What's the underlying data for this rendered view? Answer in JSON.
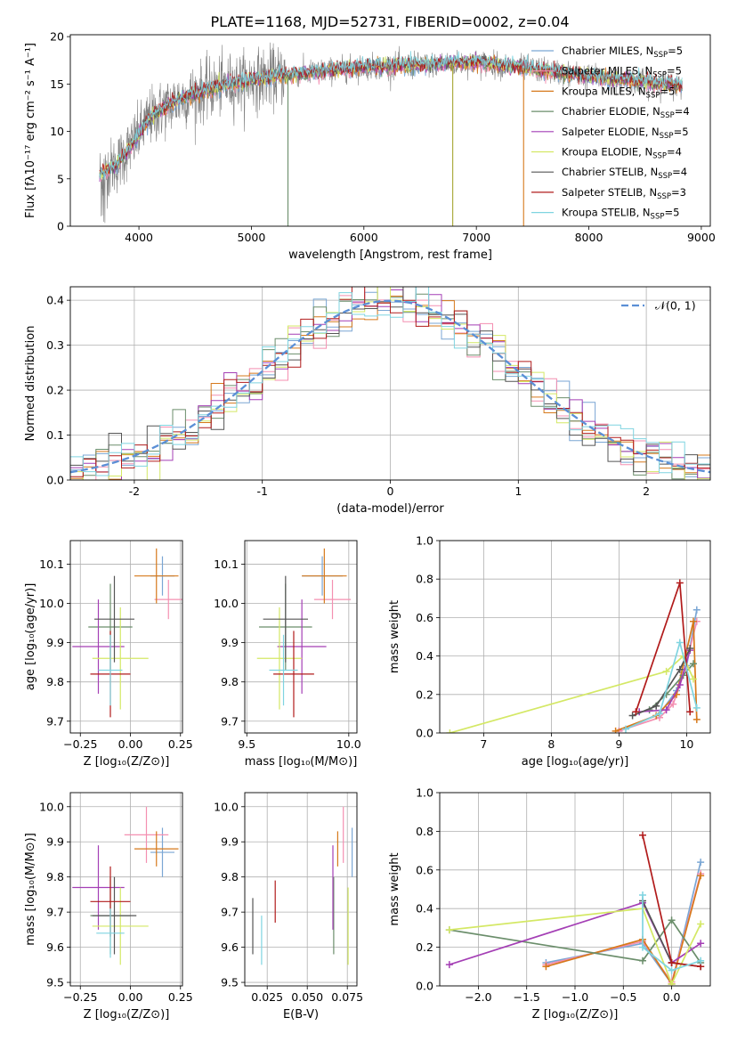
{
  "chart_data": [
    {
      "type": "line",
      "panel": "spectrum",
      "title": "PLATE=1168, MJD=52731, FIBERID=0002, z=0.04",
      "xlabel": "wavelength [Angstrom, rest frame]",
      "ylabel": "Flux [fλ10⁻¹⁷ erg cm⁻² s⁻¹ A⁻¹]",
      "xlim": [
        3390,
        9080
      ],
      "ylim": [
        0,
        20.2
      ],
      "xticks": [
        4000,
        5000,
        6000,
        7000,
        8000,
        9000
      ],
      "yticks": [
        0,
        5,
        10,
        15,
        20
      ],
      "grid": false,
      "legend_position": "upper-right",
      "data_range_x": [
        3650,
        8830
      ],
      "continuum": {
        "x": [
          3650,
          3800,
          3950,
          4100,
          4300,
          4500,
          4800,
          5200,
          5600,
          6000,
          6500,
          7000,
          7500,
          8000,
          8500,
          8830
        ],
        "y": [
          5.5,
          6.5,
          8.8,
          11.5,
          13.0,
          14.0,
          15.0,
          15.8,
          16.3,
          16.8,
          17.0,
          17.3,
          16.6,
          15.8,
          15.2,
          14.8
        ]
      },
      "data_series": {
        "name": "SDSS spectrum",
        "color": "#808080"
      },
      "series": [
        {
          "name": "Chabrier MILES, N",
          "sub": "SSP",
          "suffix": "=5",
          "color": "#7aa6d4"
        },
        {
          "name": "Salpeter MILES, N",
          "sub": "SSP",
          "suffix": "=5",
          "color": "#f48fb1"
        },
        {
          "name": "Kroupa MILES, N",
          "sub": "SSP",
          "suffix": "=5",
          "color": "#d6791b"
        },
        {
          "name": "Chabrier ELODIE, N",
          "sub": "SSP",
          "suffix": "=4",
          "color": "#6b8e6b"
        },
        {
          "name": "Salpeter ELODIE, N",
          "sub": "SSP",
          "suffix": "=5",
          "color": "#a43fb5"
        },
        {
          "name": "Kroupa ELODIE, N",
          "sub": "SSP",
          "suffix": "=4",
          "color": "#d4e865"
        },
        {
          "name": "Chabrier STELIB, N",
          "sub": "SSP",
          "suffix": "=4",
          "color": "#555555"
        },
        {
          "name": "Salpeter STELIB, N",
          "sub": "SSP",
          "suffix": "=3",
          "color": "#b11b1b"
        },
        {
          "name": "Kroupa STELIB, N",
          "sub": "SSP",
          "suffix": "=5",
          "color": "#7fd4e0"
        }
      ],
      "dips": [
        {
          "x": 5325,
          "color": "#6b8e6b"
        },
        {
          "x": 6790,
          "color": "#a6a633"
        },
        {
          "x": 7420,
          "color": "#d6791b"
        }
      ]
    },
    {
      "type": "histogram",
      "panel": "residuals",
      "xlabel": "(data-model)/error",
      "ylabel": "Normed distribution",
      "xlim": [
        -2.5,
        2.5
      ],
      "ylim": [
        0,
        0.43
      ],
      "xticks": [
        -2,
        -1,
        0,
        1,
        2
      ],
      "yticks": [
        0.0,
        0.1,
        0.2,
        0.3,
        0.4
      ],
      "grid": true,
      "legend_position": "upper-right",
      "legend": "𝒩(0, 1)",
      "normal_curve": {
        "mu": 0,
        "sigma": 1,
        "color": "#5b8fd6"
      },
      "bin_width": 0.1,
      "series_colors": [
        "#7aa6d4",
        "#f48fb1",
        "#d6791b",
        "#6b8e6b",
        "#a43fb5",
        "#d4e865",
        "#555555",
        "#b11b1b",
        "#7fd4e0"
      ]
    },
    {
      "type": "errorbar",
      "panel": "Z-age",
      "xlabel": "Z [log₁₀(Z/Z⊙)]",
      "ylabel": "age  [log₁₀(age/yr)]",
      "xlim": [
        -0.3,
        0.26
      ],
      "ylim": [
        9.67,
        10.16
      ],
      "xticks": [
        -0.25,
        0.0,
        0.25
      ],
      "yticks": [
        9.7,
        9.8,
        9.9,
        10.0,
        10.1
      ],
      "tick_labels_x": [
        "−0.25",
        "0.00",
        "0.25"
      ],
      "tick_labels_y": [
        "9.7",
        "9.8",
        "9.9",
        "10.0",
        "10.1"
      ],
      "grid": true,
      "points": [
        {
          "x": 0.16,
          "xerr": 0.06,
          "y": 10.07,
          "yerr": 0.05,
          "color": "#7aa6d4"
        },
        {
          "x": 0.19,
          "xerr": 0.07,
          "y": 10.01,
          "yerr": 0.05,
          "color": "#f48fb1"
        },
        {
          "x": 0.13,
          "xerr": 0.11,
          "y": 10.07,
          "yerr": 0.07,
          "color": "#d6791b"
        },
        {
          "x": -0.1,
          "xerr": 0.11,
          "y": 9.94,
          "yerr": 0.11,
          "color": "#6b8e6b"
        },
        {
          "x": -0.16,
          "xerr": 0.13,
          "y": 9.89,
          "yerr": 0.12,
          "color": "#a43fb5"
        },
        {
          "x": -0.05,
          "xerr": 0.14,
          "y": 9.86,
          "yerr": 0.13,
          "color": "#d4e865"
        },
        {
          "x": -0.08,
          "xerr": 0.1,
          "y": 9.96,
          "yerr": 0.11,
          "color": "#555555"
        },
        {
          "x": -0.1,
          "xerr": 0.1,
          "y": 9.82,
          "yerr": 0.11,
          "color": "#b11b1b"
        },
        {
          "x": -0.1,
          "xerr": 0.06,
          "y": 9.83,
          "yerr": 0.09,
          "color": "#7fd4e0"
        }
      ]
    },
    {
      "type": "errorbar",
      "panel": "mass-age",
      "xlabel": "mass [log₁₀(M/M⊙)]",
      "ylabel": "",
      "xlim": [
        9.49,
        10.04
      ],
      "ylim": [
        9.67,
        10.16
      ],
      "xticks": [
        9.5,
        10.0
      ],
      "yticks": [
        9.7,
        9.8,
        9.9,
        10.0,
        10.1
      ],
      "tick_labels_x": [
        "9.5",
        "10.0"
      ],
      "tick_labels_y": [
        "9.7",
        "9.8",
        "9.9",
        "10.0",
        "10.1"
      ],
      "grid": true,
      "points": [
        {
          "x": 9.87,
          "xerr": 0.1,
          "y": 10.07,
          "yerr": 0.05,
          "color": "#7aa6d4"
        },
        {
          "x": 9.92,
          "xerr": 0.09,
          "y": 10.01,
          "yerr": 0.05,
          "color": "#f48fb1"
        },
        {
          "x": 9.88,
          "xerr": 0.11,
          "y": 10.07,
          "yerr": 0.07,
          "color": "#d6791b"
        },
        {
          "x": 9.69,
          "xerr": 0.13,
          "y": 9.94,
          "yerr": 0.11,
          "color": "#6b8e6b"
        },
        {
          "x": 9.77,
          "xerr": 0.12,
          "y": 9.89,
          "yerr": 0.12,
          "color": "#a43fb5"
        },
        {
          "x": 9.66,
          "xerr": 0.11,
          "y": 9.86,
          "yerr": 0.13,
          "color": "#d4e865"
        },
        {
          "x": 9.69,
          "xerr": 0.11,
          "y": 9.96,
          "yerr": 0.11,
          "color": "#555555"
        },
        {
          "x": 9.73,
          "xerr": 0.1,
          "y": 9.82,
          "yerr": 0.11,
          "color": "#b11b1b"
        },
        {
          "x": 9.68,
          "xerr": 0.07,
          "y": 9.83,
          "yerr": 0.09,
          "color": "#7fd4e0"
        }
      ]
    },
    {
      "type": "line",
      "panel": "age-weight",
      "xlabel": "age  [log₁₀(age/yr)]",
      "ylabel": "mass weight",
      "xlim": [
        6.35,
        10.35
      ],
      "ylim": [
        0,
        1.0
      ],
      "xticks": [
        7,
        8,
        9,
        10
      ],
      "yticks": [
        0.0,
        0.2,
        0.4,
        0.6,
        0.8,
        1.0
      ],
      "tick_labels_x": [
        "7",
        "8",
        "9",
        "10"
      ],
      "tick_labels_y": [
        "0.0",
        "0.2",
        "0.4",
        "0.6",
        "0.8",
        "1.0"
      ],
      "grid": true,
      "series": [
        {
          "color": "#7aa6d4",
          "points": [
            [
              9.0,
              0.01
            ],
            [
              9.6,
              0.1
            ],
            [
              9.85,
              0.22
            ],
            [
              10.0,
              0.35
            ],
            [
              10.15,
              0.64
            ]
          ]
        },
        {
          "color": "#f48fb1",
          "points": [
            [
              9.0,
              0.01
            ],
            [
              9.6,
              0.08
            ],
            [
              9.8,
              0.15
            ],
            [
              9.95,
              0.3
            ],
            [
              10.15,
              0.58
            ]
          ]
        },
        {
          "color": "#d6791b",
          "points": [
            [
              8.95,
              0.01
            ],
            [
              9.55,
              0.09
            ],
            [
              9.85,
              0.2
            ],
            [
              10.1,
              0.58
            ],
            [
              10.15,
              0.07
            ]
          ]
        },
        {
          "color": "#6b8e6b",
          "points": [
            [
              9.45,
              0.12
            ],
            [
              9.7,
              0.2
            ],
            [
              9.95,
              0.3
            ],
            [
              10.1,
              0.36
            ]
          ]
        },
        {
          "color": "#a43fb5",
          "points": [
            [
              9.3,
              0.11
            ],
            [
              9.7,
              0.12
            ],
            [
              9.9,
              0.25
            ],
            [
              10.05,
              0.43
            ]
          ]
        },
        {
          "color": "#d4e865",
          "points": [
            [
              6.5,
              0.0
            ],
            [
              9.7,
              0.32
            ],
            [
              9.95,
              0.4
            ],
            [
              10.1,
              0.28
            ]
          ]
        },
        {
          "color": "#555555",
          "points": [
            [
              9.2,
              0.09
            ],
            [
              9.55,
              0.14
            ],
            [
              9.9,
              0.33
            ],
            [
              10.05,
              0.44
            ]
          ]
        },
        {
          "color": "#b11b1b",
          "points": [
            [
              9.25,
              0.11
            ],
            [
              9.9,
              0.78
            ],
            [
              10.05,
              0.11
            ]
          ]
        },
        {
          "color": "#7fd4e0",
          "points": [
            [
              9.1,
              0.02
            ],
            [
              9.6,
              0.1
            ],
            [
              9.9,
              0.47
            ],
            [
              10.15,
              0.13
            ]
          ]
        }
      ]
    },
    {
      "type": "errorbar",
      "panel": "Z-mass",
      "xlabel": "Z [log₁₀(Z/Z⊙)]",
      "ylabel": "mass [log₁₀(M/M⊙)]",
      "xlim": [
        -0.3,
        0.26
      ],
      "ylim": [
        9.49,
        10.04
      ],
      "xticks": [
        -0.25,
        0.0,
        0.25
      ],
      "yticks": [
        9.5,
        9.6,
        9.7,
        9.8,
        9.9,
        10.0
      ],
      "tick_labels_x": [
        "−0.25",
        "0.00",
        "0.25"
      ],
      "tick_labels_y": [
        "9.5",
        "9.6",
        "9.7",
        "9.8",
        "9.9",
        "10.0"
      ],
      "grid": true,
      "points": [
        {
          "x": 0.16,
          "xerr": 0.06,
          "y": 9.87,
          "yerr": 0.07,
          "color": "#7aa6d4"
        },
        {
          "x": 0.08,
          "xerr": 0.11,
          "y": 9.92,
          "yerr": 0.08,
          "color": "#f48fb1"
        },
        {
          "x": 0.13,
          "xerr": 0.11,
          "y": 9.88,
          "yerr": 0.05,
          "color": "#d6791b"
        },
        {
          "x": -0.1,
          "xerr": 0.1,
          "y": 9.69,
          "yerr": 0.11,
          "color": "#6b8e6b"
        },
        {
          "x": -0.16,
          "xerr": 0.13,
          "y": 9.77,
          "yerr": 0.12,
          "color": "#a43fb5"
        },
        {
          "x": -0.05,
          "xerr": 0.14,
          "y": 9.66,
          "yerr": 0.11,
          "color": "#d4e865"
        },
        {
          "x": -0.08,
          "xerr": 0.11,
          "y": 9.69,
          "yerr": 0.11,
          "color": "#555555"
        },
        {
          "x": -0.1,
          "xerr": 0.1,
          "y": 9.73,
          "yerr": 0.1,
          "color": "#b11b1b"
        },
        {
          "x": -0.1,
          "xerr": 0.07,
          "y": 9.64,
          "yerr": 0.07,
          "color": "#7fd4e0"
        }
      ]
    },
    {
      "type": "errorbar",
      "panel": "EBV-mass",
      "xlabel": "E(B-V)",
      "ylabel": "",
      "xlim": [
        0.011,
        0.081
      ],
      "ylim": [
        9.49,
        10.04
      ],
      "xticks": [
        0.025,
        0.05,
        0.075
      ],
      "yticks": [
        9.5,
        9.6,
        9.7,
        9.8,
        9.9,
        10.0
      ],
      "tick_labels_x": [
        "0.025",
        "0.050",
        "0.075"
      ],
      "tick_labels_y": [
        "9.5",
        "9.6",
        "9.7",
        "9.8",
        "9.9",
        "10.0"
      ],
      "grid": true,
      "points": [
        {
          "x": 0.078,
          "y": 9.87,
          "yerr": 0.07,
          "color": "#7aa6d4"
        },
        {
          "x": 0.0725,
          "y": 9.92,
          "yerr": 0.08,
          "color": "#f48fb1"
        },
        {
          "x": 0.069,
          "y": 9.88,
          "yerr": 0.05,
          "color": "#d6791b"
        },
        {
          "x": 0.0665,
          "y": 9.69,
          "yerr": 0.11,
          "color": "#6b8e6b"
        },
        {
          "x": 0.066,
          "y": 9.77,
          "yerr": 0.12,
          "color": "#a43fb5"
        },
        {
          "x": 0.0755,
          "y": 9.66,
          "yerr": 0.11,
          "color": "#d4e865"
        },
        {
          "x": 0.016,
          "y": 9.66,
          "yerr": 0.08,
          "color": "#555555"
        },
        {
          "x": 0.03,
          "y": 9.73,
          "yerr": 0.06,
          "color": "#b11b1b"
        },
        {
          "x": 0.0215,
          "y": 9.62,
          "yerr": 0.07,
          "color": "#7fd4e0"
        }
      ]
    },
    {
      "type": "line",
      "panel": "Z-weight",
      "xlabel": "Z [log₁₀(Z/Z⊙)]",
      "ylabel": "mass weight",
      "xlim": [
        -2.4,
        0.4
      ],
      "ylim": [
        0,
        1.0
      ],
      "xticks": [
        -2.0,
        -1.5,
        -1.0,
        -0.5,
        0.0
      ],
      "yticks": [
        0.0,
        0.2,
        0.4,
        0.6,
        0.8,
        1.0
      ],
      "tick_labels_x": [
        "−2.0",
        "−1.5",
        "−1.0",
        "−0.5",
        "0.0"
      ],
      "tick_labels_y": [
        "0.0",
        "0.2",
        "0.4",
        "0.6",
        "0.8",
        "1.0"
      ],
      "grid": true,
      "series": [
        {
          "color": "#7aa6d4",
          "points": [
            [
              -1.3,
              0.12
            ],
            [
              -0.3,
              0.22
            ],
            [
              0.0,
              0.01
            ],
            [
              0.3,
              0.64
            ]
          ]
        },
        {
          "color": "#f48fb1",
          "points": [
            [
              -1.3,
              0.11
            ],
            [
              -0.3,
              0.23
            ],
            [
              0.0,
              0.02
            ],
            [
              0.3,
              0.58
            ]
          ]
        },
        {
          "color": "#d6791b",
          "points": [
            [
              -1.3,
              0.1
            ],
            [
              -0.3,
              0.24
            ],
            [
              0.0,
              0.01
            ],
            [
              0.3,
              0.57
            ]
          ]
        },
        {
          "color": "#6b8e6b",
          "points": [
            [
              -2.3,
              0.29
            ],
            [
              -0.3,
              0.13
            ],
            [
              0.0,
              0.34
            ],
            [
              0.3,
              0.12
            ]
          ]
        },
        {
          "color": "#a43fb5",
          "points": [
            [
              -2.3,
              0.11
            ],
            [
              -0.3,
              0.43
            ],
            [
              0.0,
              0.12
            ],
            [
              0.3,
              0.22
            ]
          ]
        },
        {
          "color": "#d4e865",
          "points": [
            [
              -2.3,
              0.29
            ],
            [
              -0.3,
              0.4
            ],
            [
              0.0,
              0.01
            ],
            [
              0.3,
              0.32
            ]
          ]
        },
        {
          "color": "#555555",
          "points": [
            [
              -0.3,
              0.44
            ],
            [
              0.0,
              0.12
            ],
            [
              0.3,
              0.1
            ]
          ]
        },
        {
          "color": "#b11b1b",
          "points": [
            [
              -0.3,
              0.78
            ],
            [
              0.0,
              0.12
            ],
            [
              0.3,
              0.1
            ]
          ]
        },
        {
          "color": "#7fd4e0",
          "points": [
            [
              -0.3,
              0.47
            ],
            [
              -0.3,
              0.2
            ],
            [
              0.0,
              0.08
            ],
            [
              0.3,
              0.13
            ]
          ]
        }
      ]
    }
  ]
}
